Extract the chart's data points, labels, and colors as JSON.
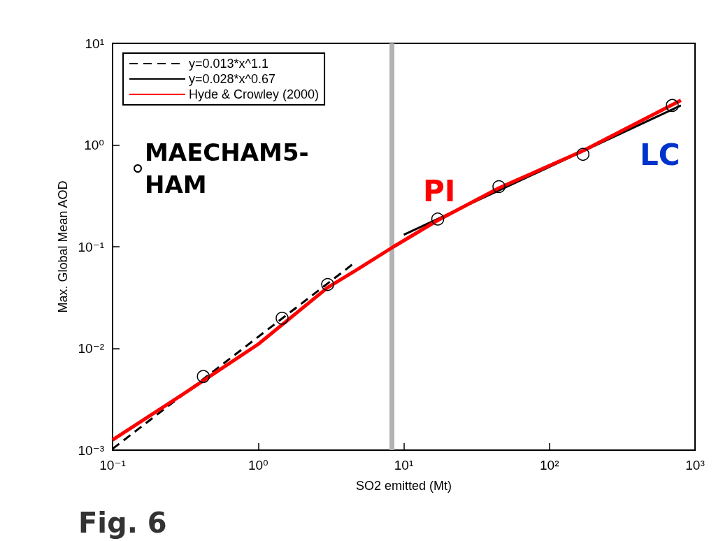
{
  "chart_data": {
    "type": "line",
    "xlabel": "SO2 emitted (Mt)",
    "ylabel": "Max. Global Mean AOD",
    "log": "xy",
    "xlim": [
      0.1,
      1000
    ],
    "ylim": [
      0.001,
      10
    ],
    "xticks": [
      {
        "value": 0.1,
        "label": "10⁻¹"
      },
      {
        "value": 1,
        "label": "10⁰"
      },
      {
        "value": 10,
        "label": "10¹"
      },
      {
        "value": 100,
        "label": "10²"
      },
      {
        "value": 1000,
        "label": "10³"
      }
    ],
    "yticks": [
      {
        "value": 0.001,
        "label": "10⁻³"
      },
      {
        "value": 0.01,
        "label": "10⁻²"
      },
      {
        "value": 0.1,
        "label": "10⁻¹"
      },
      {
        "value": 1,
        "label": "10⁰"
      },
      {
        "value": 10,
        "label": "10¹"
      }
    ],
    "grid": false,
    "legend": "top left",
    "series": [
      {
        "name": "y=0.013*x^1.1",
        "color": "#000000",
        "line_style": "dashed",
        "x": [
          0.1,
          4.6
        ],
        "values": [
          0.00103,
          0.0697
        ]
      },
      {
        "name": "y=0.028*x^0.67",
        "color": "#000000",
        "line_style": "solid",
        "x": [
          10,
          800
        ],
        "values": [
          0.131,
          2.45
        ]
      },
      {
        "name": "Hyde & Crowley (2000)",
        "color": "#ff0000",
        "line_style": "solid",
        "x": [
          0.1,
          0.3,
          1,
          3,
          5,
          8.5,
          17,
          45,
          170,
          800
        ],
        "values": [
          0.00126,
          0.0035,
          0.011,
          0.0397,
          0.062,
          0.1,
          0.181,
          0.378,
          0.877,
          2.75
        ]
      },
      {
        "name": "MAECHAM5-HAM",
        "type": "scatter",
        "color": "#000000",
        "marker": "circle",
        "x": [
          0.42,
          1.46,
          3.0,
          17.1,
          45,
          170,
          698
        ],
        "values": [
          0.0053,
          0.0198,
          0.0425,
          0.187,
          0.39,
          0.81,
          2.45
        ]
      }
    ],
    "ref_lines": [
      {
        "axis": "x",
        "value": 8.3,
        "color": "#b3b3b3"
      }
    ],
    "annotations": [
      "PI",
      "LC",
      "Fig. 6"
    ]
  }
}
